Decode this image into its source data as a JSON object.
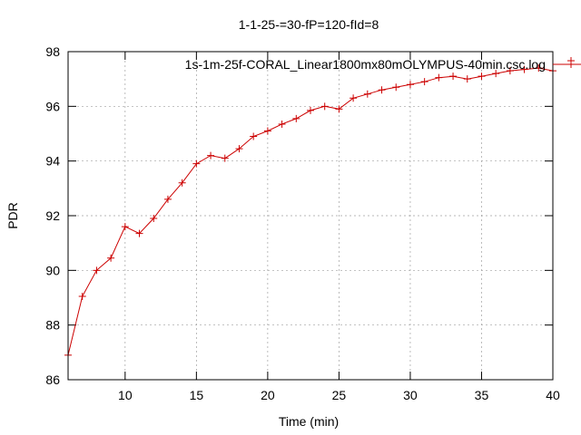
{
  "chart_data": {
    "type": "line",
    "title": "1-1-25-=30-fP=120-fId=8",
    "xlabel": "Time (min)",
    "ylabel": "PDR",
    "xlim": [
      6,
      40
    ],
    "ylim": [
      86,
      98
    ],
    "x_ticks": [
      10,
      15,
      20,
      25,
      30,
      35,
      40
    ],
    "y_ticks": [
      86,
      88,
      90,
      92,
      94,
      96,
      98
    ],
    "grid": true,
    "legend_position": "top-right",
    "series": [
      {
        "name": "1s-1m-25f-CORAL_Linear1800mx80mOLYMPUS-40min.csc.log",
        "color": "#cc0000",
        "marker": "plus",
        "x": [
          6,
          7,
          8,
          9,
          10,
          11,
          12,
          13,
          14,
          15,
          16,
          17,
          18,
          19,
          20,
          21,
          22,
          23,
          24,
          25,
          26,
          27,
          28,
          29,
          30,
          31,
          32,
          33,
          34,
          35,
          36,
          37,
          38,
          39,
          40
        ],
        "y": [
          86.9,
          89.05,
          90.0,
          90.45,
          91.6,
          91.35,
          91.9,
          92.6,
          93.2,
          93.9,
          94.2,
          94.1,
          94.45,
          94.9,
          95.1,
          95.35,
          95.55,
          95.85,
          96.0,
          95.9,
          96.3,
          96.45,
          96.6,
          96.7,
          96.8,
          96.9,
          97.05,
          97.1,
          97.0,
          97.1,
          97.2,
          97.3,
          97.35,
          97.4,
          97.3
        ]
      }
    ]
  }
}
